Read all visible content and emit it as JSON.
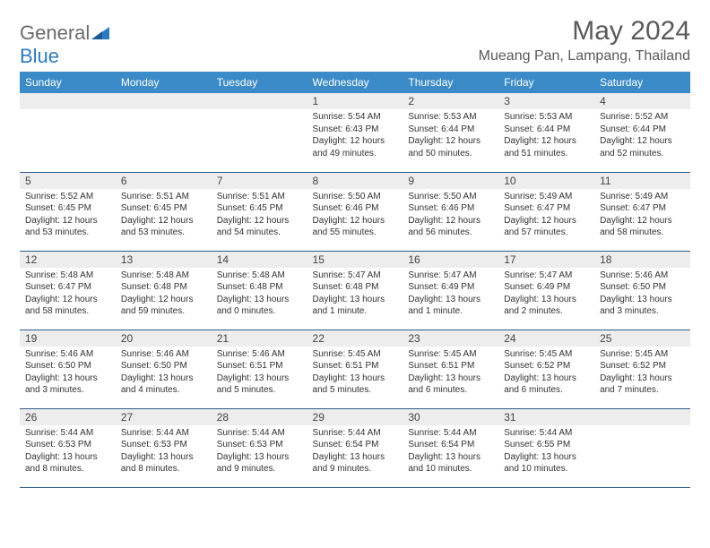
{
  "logo": {
    "text1": "General",
    "text2": "Blue"
  },
  "title": "May 2024",
  "location": "Mueang Pan, Lampang, Thailand",
  "colors": {
    "header_bg": "#3b8bc8",
    "header_text": "#ffffff",
    "daynum_bg": "#ededed",
    "border": "#2c5a8c",
    "logo_gray": "#6b6b6b",
    "logo_blue": "#2c7bbf"
  },
  "dayNames": [
    "Sunday",
    "Monday",
    "Tuesday",
    "Wednesday",
    "Thursday",
    "Friday",
    "Saturday"
  ],
  "weeks": [
    [
      null,
      null,
      null,
      {
        "n": "1",
        "sr": "5:54 AM",
        "ss": "6:43 PM",
        "dl": "12 hours and 49 minutes."
      },
      {
        "n": "2",
        "sr": "5:53 AM",
        "ss": "6:44 PM",
        "dl": "12 hours and 50 minutes."
      },
      {
        "n": "3",
        "sr": "5:53 AM",
        "ss": "6:44 PM",
        "dl": "12 hours and 51 minutes."
      },
      {
        "n": "4",
        "sr": "5:52 AM",
        "ss": "6:44 PM",
        "dl": "12 hours and 52 minutes."
      }
    ],
    [
      {
        "n": "5",
        "sr": "5:52 AM",
        "ss": "6:45 PM",
        "dl": "12 hours and 53 minutes."
      },
      {
        "n": "6",
        "sr": "5:51 AM",
        "ss": "6:45 PM",
        "dl": "12 hours and 53 minutes."
      },
      {
        "n": "7",
        "sr": "5:51 AM",
        "ss": "6:45 PM",
        "dl": "12 hours and 54 minutes."
      },
      {
        "n": "8",
        "sr": "5:50 AM",
        "ss": "6:46 PM",
        "dl": "12 hours and 55 minutes."
      },
      {
        "n": "9",
        "sr": "5:50 AM",
        "ss": "6:46 PM",
        "dl": "12 hours and 56 minutes."
      },
      {
        "n": "10",
        "sr": "5:49 AM",
        "ss": "6:47 PM",
        "dl": "12 hours and 57 minutes."
      },
      {
        "n": "11",
        "sr": "5:49 AM",
        "ss": "6:47 PM",
        "dl": "12 hours and 58 minutes."
      }
    ],
    [
      {
        "n": "12",
        "sr": "5:48 AM",
        "ss": "6:47 PM",
        "dl": "12 hours and 58 minutes."
      },
      {
        "n": "13",
        "sr": "5:48 AM",
        "ss": "6:48 PM",
        "dl": "12 hours and 59 minutes."
      },
      {
        "n": "14",
        "sr": "5:48 AM",
        "ss": "6:48 PM",
        "dl": "13 hours and 0 minutes."
      },
      {
        "n": "15",
        "sr": "5:47 AM",
        "ss": "6:48 PM",
        "dl": "13 hours and 1 minute."
      },
      {
        "n": "16",
        "sr": "5:47 AM",
        "ss": "6:49 PM",
        "dl": "13 hours and 1 minute."
      },
      {
        "n": "17",
        "sr": "5:47 AM",
        "ss": "6:49 PM",
        "dl": "13 hours and 2 minutes."
      },
      {
        "n": "18",
        "sr": "5:46 AM",
        "ss": "6:50 PM",
        "dl": "13 hours and 3 minutes."
      }
    ],
    [
      {
        "n": "19",
        "sr": "5:46 AM",
        "ss": "6:50 PM",
        "dl": "13 hours and 3 minutes."
      },
      {
        "n": "20",
        "sr": "5:46 AM",
        "ss": "6:50 PM",
        "dl": "13 hours and 4 minutes."
      },
      {
        "n": "21",
        "sr": "5:46 AM",
        "ss": "6:51 PM",
        "dl": "13 hours and 5 minutes."
      },
      {
        "n": "22",
        "sr": "5:45 AM",
        "ss": "6:51 PM",
        "dl": "13 hours and 5 minutes."
      },
      {
        "n": "23",
        "sr": "5:45 AM",
        "ss": "6:51 PM",
        "dl": "13 hours and 6 minutes."
      },
      {
        "n": "24",
        "sr": "5:45 AM",
        "ss": "6:52 PM",
        "dl": "13 hours and 6 minutes."
      },
      {
        "n": "25",
        "sr": "5:45 AM",
        "ss": "6:52 PM",
        "dl": "13 hours and 7 minutes."
      }
    ],
    [
      {
        "n": "26",
        "sr": "5:44 AM",
        "ss": "6:53 PM",
        "dl": "13 hours and 8 minutes."
      },
      {
        "n": "27",
        "sr": "5:44 AM",
        "ss": "6:53 PM",
        "dl": "13 hours and 8 minutes."
      },
      {
        "n": "28",
        "sr": "5:44 AM",
        "ss": "6:53 PM",
        "dl": "13 hours and 9 minutes."
      },
      {
        "n": "29",
        "sr": "5:44 AM",
        "ss": "6:54 PM",
        "dl": "13 hours and 9 minutes."
      },
      {
        "n": "30",
        "sr": "5:44 AM",
        "ss": "6:54 PM",
        "dl": "13 hours and 10 minutes."
      },
      {
        "n": "31",
        "sr": "5:44 AM",
        "ss": "6:55 PM",
        "dl": "13 hours and 10 minutes."
      },
      null
    ]
  ],
  "labels": {
    "sunrise": "Sunrise:",
    "sunset": "Sunset:",
    "daylight": "Daylight:"
  }
}
